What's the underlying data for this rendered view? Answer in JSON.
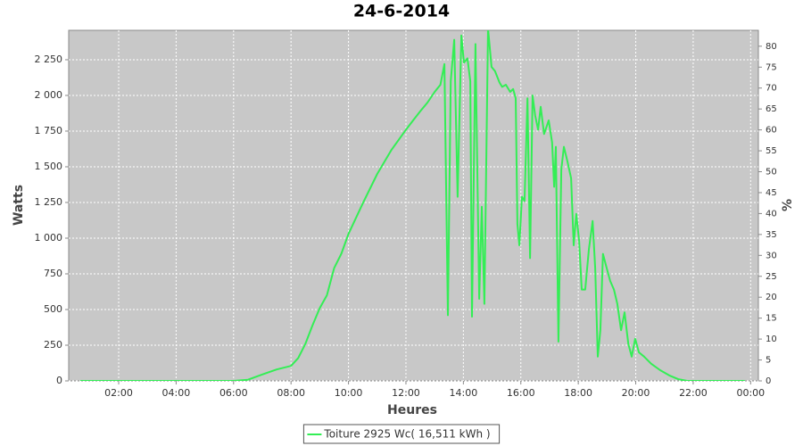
{
  "chart_data": {
    "type": "line",
    "title": "24-6-2014",
    "x_label": "Heures",
    "y_label": "Watts",
    "y2_label": "%",
    "grid": true,
    "legend": "bottom",
    "xlim": [
      0.26,
      24.27
    ],
    "xticks": [
      {
        "value": 2,
        "label": "02:00"
      },
      {
        "value": 4,
        "label": "04:00"
      },
      {
        "value": 6,
        "label": "06:00"
      },
      {
        "value": 8,
        "label": "08:00"
      },
      {
        "value": 10,
        "label": "10:00"
      },
      {
        "value": 12,
        "label": "12:00"
      },
      {
        "value": 14,
        "label": "14:00"
      },
      {
        "value": 16,
        "label": "16:00"
      },
      {
        "value": 18,
        "label": "18:00"
      },
      {
        "value": 20,
        "label": "20:00"
      },
      {
        "value": 22,
        "label": "22:00"
      },
      {
        "value": 24,
        "label": "00:00"
      }
    ],
    "ylim": [
      0,
      2456
    ],
    "yticks": [
      0,
      250,
      500,
      750,
      {
        "value": 1000,
        "label": "1 000"
      },
      {
        "value": 1250,
        "label": "1 250"
      },
      {
        "value": 1500,
        "label": "1 500"
      },
      {
        "value": 1750,
        "label": "1 750"
      },
      {
        "value": 2000,
        "label": "2 000"
      },
      {
        "value": 2250,
        "label": "2 250"
      }
    ],
    "y2lim": [
      0,
      83.8
    ],
    "y2ticks": [
      0,
      5,
      10,
      15,
      20,
      25,
      30,
      35,
      40,
      45,
      50,
      55,
      60,
      65,
      70,
      75,
      80
    ],
    "x": [
      0.66,
      2,
      4,
      6,
      6.5,
      7,
      7.5,
      8,
      8.25,
      8.5,
      8.75,
      9,
      9.25,
      9.5,
      9.75,
      10,
      10.5,
      11,
      11.5,
      12,
      12.25,
      12.5,
      12.75,
      13,
      13.2,
      13.34,
      13.46,
      13.56,
      13.68,
      13.8,
      13.93,
      14.02,
      14.14,
      14.24,
      14.3,
      14.42,
      14.55,
      14.64,
      14.73,
      14.86,
      14.98,
      15.1,
      15.26,
      15.35,
      15.48,
      15.63,
      15.73,
      15.82,
      15.88,
      15.95,
      16.04,
      16.13,
      16.23,
      16.32,
      16.41,
      16.5,
      16.6,
      16.69,
      16.81,
      16.97,
      17.09,
      17.16,
      17.22,
      17.31,
      17.41,
      17.5,
      17.62,
      17.75,
      17.84,
      17.93,
      18.03,
      18.12,
      18.24,
      18.37,
      18.5,
      18.59,
      18.68,
      18.77,
      18.86,
      18.99,
      19.11,
      19.24,
      19.36,
      19.49,
      19.61,
      19.74,
      19.86,
      19.98,
      20.11,
      20.29,
      20.54,
      20.85,
      21.17,
      21.48,
      21.79,
      23.8
    ],
    "series": [
      {
        "name": "Toiture 2925 Wc( 16,511 kWh )",
        "color": "#33ee55",
        "values": [
          0,
          0,
          0,
          0,
          8,
          45,
          80,
          105,
          160,
          260,
          390,
          510,
          600,
          790,
          890,
          1030,
          1245,
          1450,
          1620,
          1760,
          1825,
          1890,
          1950,
          2025,
          2075,
          2220,
          460,
          2100,
          2390,
          1290,
          2420,
          2230,
          2260,
          2100,
          450,
          2360,
          575,
          1220,
          540,
          2470,
          2200,
          2170,
          2090,
          2060,
          2075,
          2025,
          2045,
          1980,
          1100,
          950,
          1290,
          1260,
          1980,
          860,
          2000,
          1860,
          1760,
          1920,
          1730,
          1825,
          1670,
          1360,
          1640,
          275,
          1480,
          1640,
          1540,
          1420,
          950,
          1170,
          980,
          640,
          640,
          920,
          1120,
          790,
          170,
          355,
          890,
          790,
          700,
          640,
          540,
          355,
          480,
          260,
          170,
          295,
          200,
          170,
          120,
          75,
          38,
          12,
          0,
          0
        ]
      }
    ]
  }
}
